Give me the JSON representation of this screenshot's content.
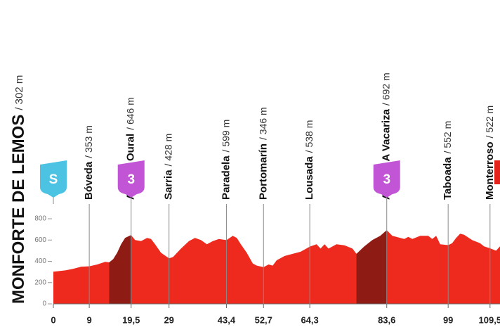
{
  "chart_data": {
    "type": "area",
    "title": "MONFORTE DE LEMOS",
    "subtitle": "/ 302 m",
    "x": [
      0,
      3,
      5,
      7,
      9,
      11,
      13,
      14,
      15,
      16,
      17,
      18,
      19.5,
      20.5,
      22,
      23.5,
      24.5,
      25.5,
      27,
      29,
      30,
      32,
      34,
      35.5,
      37,
      38.5,
      40,
      41.5,
      43.4,
      45,
      46,
      47,
      48.5,
      50,
      51,
      52.7,
      54,
      55,
      56,
      58,
      60,
      62,
      64.3,
      66,
      67,
      68,
      69,
      71,
      73,
      75,
      76,
      78,
      80,
      82,
      83.6,
      85,
      86,
      88,
      89,
      90,
      92,
      94,
      95,
      96,
      97,
      99,
      100,
      101,
      102,
      103,
      105,
      107,
      108,
      109.5,
      111,
      112
    ],
    "values": [
      302,
      315,
      330,
      350,
      353,
      370,
      395,
      390,
      420,
      480,
      560,
      620,
      646,
      600,
      590,
      620,
      610,
      560,
      480,
      428,
      440,
      520,
      590,
      620,
      600,
      560,
      590,
      610,
      599,
      640,
      620,
      560,
      480,
      380,
      360,
      346,
      370,
      360,
      410,
      450,
      470,
      490,
      538,
      560,
      520,
      560,
      520,
      560,
      550,
      520,
      470,
      540,
      600,
      640,
      692,
      640,
      630,
      610,
      630,
      610,
      640,
      640,
      610,
      640,
      560,
      552,
      570,
      620,
      660,
      650,
      600,
      570,
      540,
      522,
      500,
      540
    ],
    "color": "#ee2a1e",
    "climb_color": "#8e1c15",
    "climbs": [
      {
        "start": 14,
        "end": 19.5
      },
      {
        "start": 76,
        "end": 83.6
      }
    ],
    "xlim": [
      0,
      112
    ],
    "ylim": [
      0,
      800
    ],
    "yticks": [
      0,
      200,
      400,
      600,
      800
    ],
    "xticks": [
      0,
      9,
      {
        "value": 19.5,
        "label": "19,5"
      },
      29,
      {
        "value": 43.4,
        "label": "43,4"
      },
      {
        "value": 52.7,
        "label": "52,7"
      },
      {
        "value": 64.3,
        "label": "64,3"
      },
      {
        "value": 83.6,
        "label": "83,6"
      },
      99,
      {
        "value": 109.5,
        "label": "109,5"
      }
    ],
    "waypoints": [
      {
        "km": 9,
        "name": "Bóveda",
        "detail": "/ 353 m"
      },
      {
        "km": 19.5,
        "name": "Alto de Oural",
        "detail": "/ 646 m"
      },
      {
        "km": 29,
        "name": "Sarria",
        "detail": "/ 428 m"
      },
      {
        "km": 43.4,
        "name": "Paradela",
        "detail": "/ 599 m"
      },
      {
        "km": 52.7,
        "name": "Portomarín",
        "detail": "/ 346 m"
      },
      {
        "km": 64.3,
        "name": "Lousada",
        "detail": "/ 538 m"
      },
      {
        "km": 83.6,
        "name": "Alto de A Vacariza",
        "detail": "/ 692 m"
      },
      {
        "km": 99,
        "name": "Taboada",
        "detail": "/ 552 m"
      },
      {
        "km": 109.5,
        "name": "Monterroso",
        "detail": "/ 522 m"
      }
    ],
    "markers": [
      {
        "km": 0,
        "label": "S",
        "color": "#4cc3e2"
      },
      {
        "km": 19.5,
        "label": "3",
        "color": "#c254d6"
      },
      {
        "km": 83.6,
        "label": "3",
        "color": "#c254d6"
      }
    ]
  }
}
